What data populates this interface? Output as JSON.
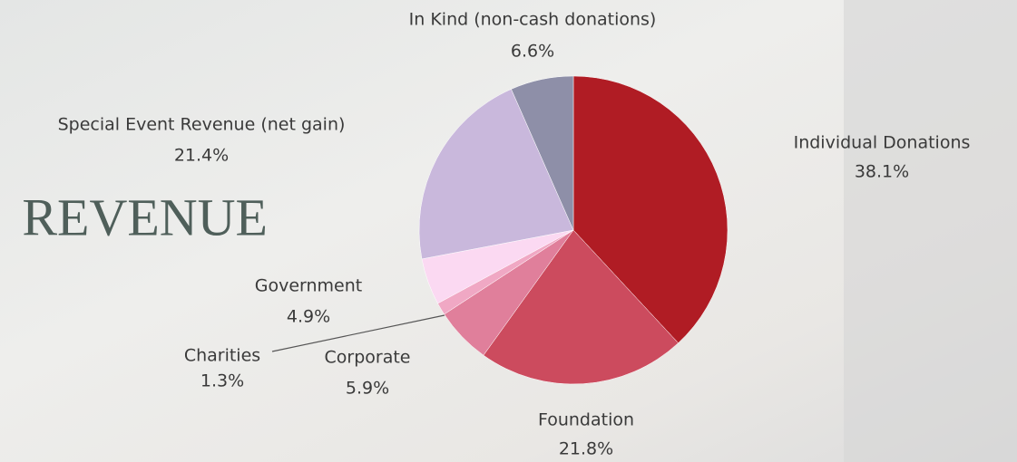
{
  "chart_data": {
    "type": "pie",
    "title": "REVENUE",
    "categories": [
      "Individual Donations",
      "Foundation",
      "Corporate",
      "Charities",
      "Government",
      "Special Event Revenue (net gain)",
      "In Kind (non-cash donations)"
    ],
    "values": [
      38.1,
      21.8,
      5.9,
      1.3,
      4.9,
      21.4,
      6.6
    ],
    "value_labels": [
      "38.1%",
      "21.8%",
      "5.9%",
      "1.3%",
      "4.9%",
      "21.4%",
      "6.6%"
    ],
    "colors": [
      "#b01c24",
      "#cc4b5e",
      "#e07f9b",
      "#f0a8c4",
      "#fbd9f2",
      "#c9b8dc",
      "#8e8fa8"
    ]
  }
}
